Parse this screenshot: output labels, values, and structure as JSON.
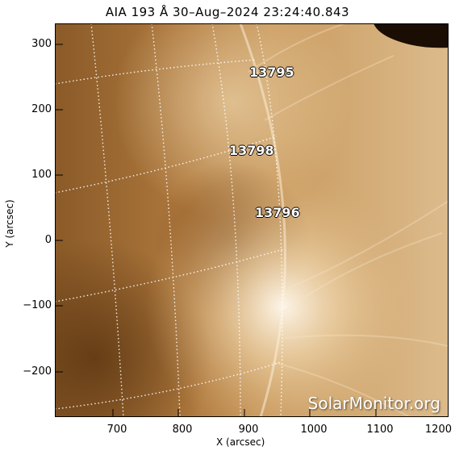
{
  "title": "AIA 193 Å 30–Aug–2024 23:24:40.843",
  "x_axis": {
    "label": "X (arcsec)",
    "ticks": [
      "700",
      "800",
      "900",
      "1000",
      "1100",
      "1200"
    ]
  },
  "y_axis": {
    "label": "Y (arcsec)",
    "ticks": [
      "300",
      "200",
      "100",
      "0",
      "−100",
      "−200"
    ]
  },
  "active_regions": [
    "13795",
    "13798",
    "13796"
  ],
  "watermark": "SolarMonitor.org",
  "colors": {
    "solar_tint": "#b07a3a",
    "limb_glow": "#fff6e6"
  }
}
